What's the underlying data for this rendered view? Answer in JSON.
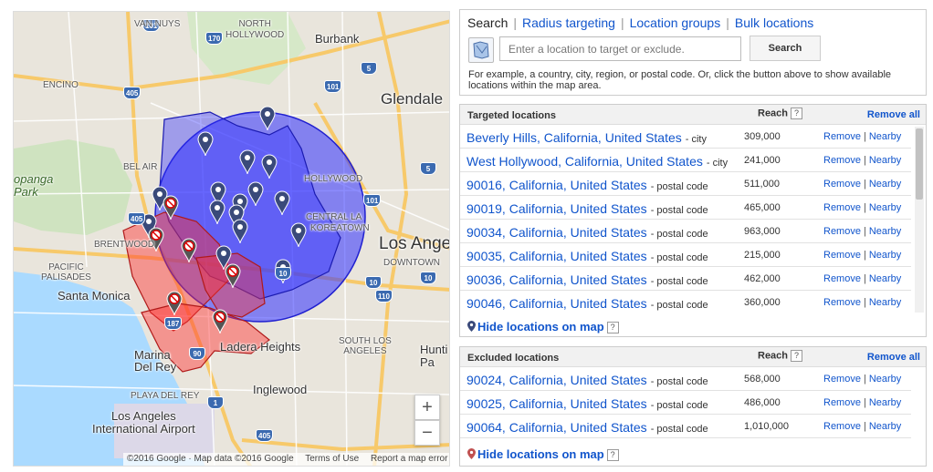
{
  "map": {
    "labels": {
      "van_nuys": "VAN NUYS",
      "north_hollywood": "NORTH\nHOLLYWOOD",
      "burbank": "Burbank",
      "encino": "ENCINO",
      "glendale": "Glendale",
      "bel_air": "BEL AIR",
      "topanga_park": "opanga\nPark",
      "hollywood": "HOLLYWOOD",
      "central_la": "CENTRAL LA",
      "koreatown": "KOREATOWN",
      "brentwood": "BRENTWOOD",
      "los_angeles": "Los Ange",
      "pacific_palisades": "PACIFIC\nPALISADES",
      "downtown": "DOWNTOWN",
      "santa_monica": "Santa Monica",
      "ladera_heights": "Ladera Heights",
      "marina_del_rey": "Marina\nDel Rey",
      "south_los_angeles": "SOUTH LOS\nANGELES",
      "huntington": "Hunti\nPa",
      "playa_del_rey": "PLAYA DEL REY",
      "inglewood": "Inglewood",
      "lax": "Los Angeles\nInternational Airport"
    },
    "highway_shields": [
      "101",
      "170",
      "5",
      "405",
      "101",
      "5",
      "405",
      "101",
      "10",
      "10",
      "110",
      "10",
      "187",
      "90",
      "1",
      "405"
    ],
    "zoom_in": "+",
    "zoom_out": "−",
    "footer": {
      "copyright": "©2016 Google · Map data ©2016 Google",
      "terms": "Terms of Use",
      "report": "Report a map error"
    },
    "colors": {
      "targeted_fill": "#3030ff",
      "excluded_fill": "#ff4040"
    }
  },
  "search": {
    "tabs": [
      {
        "label": "Search",
        "active": true
      },
      {
        "label": "Radius targeting",
        "active": false
      },
      {
        "label": "Location groups",
        "active": false
      },
      {
        "label": "Bulk locations",
        "active": false
      }
    ],
    "separator": "|",
    "placeholder": "Enter a location to target or exclude.",
    "button_label": "Search",
    "hint": "For example, a country, city, region, or postal code. Or, click the button above to show available locations within the map area.",
    "map_toggle_icon": "map-select-icon"
  },
  "targeted": {
    "title": "Targeted locations",
    "reach_label": "Reach",
    "help": "?",
    "remove_all": "Remove all",
    "rows": [
      {
        "name": "Beverly Hills, California, United States",
        "type": "- city",
        "reach": "309,000"
      },
      {
        "name": "West Hollywood, California, United States",
        "type": "- city",
        "reach": "241,000"
      },
      {
        "name": "90016, California, United States",
        "type": "- postal code",
        "reach": "511,000"
      },
      {
        "name": "90019, California, United States",
        "type": "- postal code",
        "reach": "465,000"
      },
      {
        "name": "90034, California, United States",
        "type": "- postal code",
        "reach": "963,000"
      },
      {
        "name": "90035, California, United States",
        "type": "- postal code",
        "reach": "215,000"
      },
      {
        "name": "90036, California, United States",
        "type": "- postal code",
        "reach": "462,000"
      },
      {
        "name": "90046, California, United States",
        "type": "- postal code",
        "reach": "360,000"
      }
    ],
    "remove_label": "Remove",
    "nearby_label": "Nearby",
    "action_sep": "|",
    "hide_link": "Hide locations on map"
  },
  "excluded": {
    "title": "Excluded locations",
    "reach_label": "Reach",
    "help": "?",
    "remove_all": "Remove all",
    "rows": [
      {
        "name": "90024, California, United States",
        "type": "- postal code",
        "reach": "568,000"
      },
      {
        "name": "90025, California, United States",
        "type": "- postal code",
        "reach": "486,000"
      },
      {
        "name": "90064, California, United States",
        "type": "- postal code",
        "reach": "1,010,000"
      }
    ],
    "remove_label": "Remove",
    "nearby_label": "Nearby",
    "action_sep": "|",
    "hide_link": "Hide locations on map"
  }
}
